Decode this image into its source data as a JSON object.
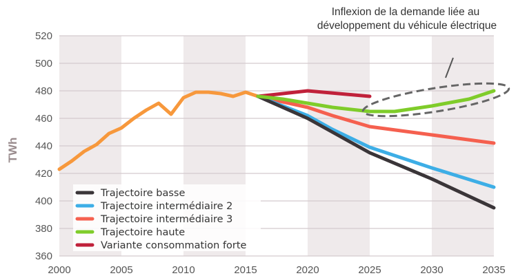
{
  "chart_data": {
    "type": "line",
    "title": "",
    "xlabel": "",
    "ylabel": "TWh",
    "xlim": [
      2000,
      2035
    ],
    "ylim": [
      360,
      520
    ],
    "x_ticks": [
      "2000",
      "2005",
      "2010",
      "2015",
      "2020",
      "2025",
      "2030",
      "2035"
    ],
    "y_ticks": [
      "360",
      "380",
      "400",
      "420",
      "440",
      "460",
      "480",
      "500",
      "520"
    ],
    "grid": "horizontal",
    "shaded_bands": [
      [
        2000,
        2005
      ],
      [
        2010,
        2015
      ],
      [
        2020,
        2025
      ],
      [
        2030,
        2035
      ]
    ],
    "legend_position": "bottom-left",
    "annotation": {
      "lines": [
        "Inflexion de la demande liée au",
        "développement du véhicule électrique"
      ]
    },
    "history": {
      "color": "#f7983c",
      "x": [
        2000,
        2001,
        2002,
        2003,
        2004,
        2005,
        2006,
        2007,
        2008,
        2009,
        2010,
        2011,
        2012,
        2013,
        2014,
        2015,
        2016
      ],
      "y": [
        423,
        429,
        436,
        441,
        449,
        453,
        460,
        466,
        471,
        463,
        475,
        479,
        479,
        478,
        476,
        479,
        476
      ]
    },
    "series": [
      {
        "name": "Trajectoire basse",
        "color": "#3a3538",
        "x": [
          2016,
          2018,
          2020,
          2022,
          2025,
          2030,
          2035
        ],
        "y": [
          476,
          468,
          460,
          450,
          435,
          416,
          395
        ]
      },
      {
        "name": "Trajectoire intermédiaire 2",
        "color": "#3daee6",
        "x": [
          2016,
          2018,
          2020,
          2022,
          2025,
          2030,
          2035
        ],
        "y": [
          476,
          469,
          462,
          452,
          439,
          424,
          410
        ]
      },
      {
        "name": "Trajectoire intermédiaire 3",
        "color": "#f5604f",
        "x": [
          2016,
          2018,
          2020,
          2022,
          2025,
          2030,
          2035
        ],
        "y": [
          476,
          472,
          468,
          462,
          454,
          448,
          442
        ]
      },
      {
        "name": "Trajectoire haute",
        "color": "#7fcc2a",
        "x": [
          2016,
          2018,
          2020,
          2022,
          2025,
          2027,
          2030,
          2033,
          2035
        ],
        "y": [
          476,
          474,
          471,
          468,
          465,
          465,
          469,
          474,
          480
        ]
      },
      {
        "name": "Variante consommation forte",
        "color": "#c0213a",
        "x": [
          2016,
          2020,
          2025
        ],
        "y": [
          476,
          480,
          476
        ]
      }
    ]
  }
}
